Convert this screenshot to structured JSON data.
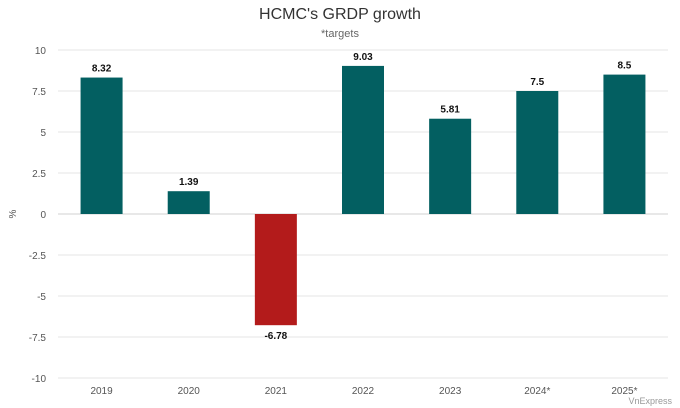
{
  "chart_data": {
    "type": "bar",
    "title": "HCMC's GRDP growth",
    "subtitle": "*targets",
    "xlabel": "",
    "ylabel": "%",
    "ylim": [
      -10,
      10
    ],
    "yticks": [
      10,
      7.5,
      5,
      2.5,
      0,
      -2.5,
      -5,
      -7.5,
      -10
    ],
    "ytick_labels": [
      "10",
      "7.5",
      "5",
      "2.5",
      "0",
      "-2.5",
      "-5",
      "-7.5",
      "-10"
    ],
    "categories": [
      "2019",
      "2020",
      "2021",
      "2022",
      "2023",
      "2024*",
      "2025*"
    ],
    "values": [
      8.32,
      1.39,
      -6.78,
      9.03,
      5.81,
      7.5,
      8.5
    ],
    "data_labels": [
      "8.32",
      "1.39",
      "-6.78",
      "9.03",
      "5.81",
      "7.5",
      "8.5"
    ],
    "colors": {
      "positive": "#035f61",
      "negative": "#b31b1b",
      "grid": "#e6e6e6"
    },
    "grid": true,
    "legend": "none"
  },
  "credit": "VnExpress"
}
